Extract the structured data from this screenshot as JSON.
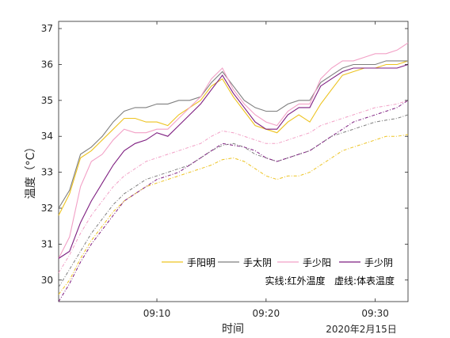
{
  "chart_data": {
    "type": "line",
    "xlabel": "时间",
    "ylabel": "温度（°C）",
    "date_label": "2020年2月15日",
    "xlim": [
      "09:01",
      "09:33"
    ],
    "ylim": [
      29.4,
      37.2
    ],
    "x_ticks": [
      {
        "label": "09:10",
        "value": "09:10"
      },
      {
        "label": "09:20",
        "value": "09:20"
      },
      {
        "label": "09:30",
        "value": "09:30"
      }
    ],
    "y_ticks": [
      30,
      31,
      32,
      33,
      34,
      35,
      36,
      37
    ],
    "grid": false,
    "legend_position": "bottom-right",
    "legend_note": "实线:红外温度   虚线:体表温度",
    "colors": {
      "手阳明": "#EDC320",
      "手太阴": "#7F7F7F",
      "手少阳": "#F2A0C6",
      "手少阴": "#7E1E80"
    },
    "series": [
      {
        "name": "手阳明",
        "style": "solid",
        "color": "#EDC320",
        "x": [
          "09:01",
          "09:02",
          "09:03",
          "09:04",
          "09:05",
          "09:06",
          "09:07",
          "09:08",
          "09:09",
          "09:10",
          "09:11",
          "09:12",
          "09:13",
          "09:14",
          "09:15",
          "09:16",
          "09:17",
          "09:18",
          "09:19",
          "09:20",
          "09:21",
          "09:22",
          "09:23",
          "09:24",
          "09:25",
          "09:26",
          "09:27",
          "09:28",
          "09:29",
          "09:30",
          "09:31",
          "09:32",
          "09:33"
        ],
        "y": [
          31.8,
          32.4,
          33.4,
          33.6,
          33.9,
          34.2,
          34.5,
          34.5,
          34.4,
          34.4,
          34.3,
          34.6,
          34.8,
          35.0,
          35.4,
          35.6,
          35.1,
          34.7,
          34.3,
          34.2,
          34.1,
          34.4,
          34.6,
          34.4,
          34.9,
          35.3,
          35.7,
          35.8,
          35.9,
          35.9,
          36.0,
          36.0,
          36.1
        ]
      },
      {
        "name": "手太阴",
        "style": "solid",
        "color": "#7F7F7F",
        "x": [
          "09:01",
          "09:02",
          "09:03",
          "09:04",
          "09:05",
          "09:06",
          "09:07",
          "09:08",
          "09:09",
          "09:10",
          "09:11",
          "09:12",
          "09:13",
          "09:14",
          "09:15",
          "09:16",
          "09:17",
          "09:18",
          "09:19",
          "09:20",
          "09:21",
          "09:22",
          "09:23",
          "09:24",
          "09:25",
          "09:26",
          "09:27",
          "09:28",
          "09:29",
          "09:30",
          "09:31",
          "09:32",
          "09:33"
        ],
        "y": [
          32.0,
          32.5,
          33.5,
          33.7,
          34.0,
          34.4,
          34.7,
          34.8,
          34.8,
          34.9,
          34.9,
          35.0,
          35.0,
          35.1,
          35.5,
          35.8,
          35.4,
          35.0,
          34.8,
          34.7,
          34.7,
          34.9,
          35.0,
          35.0,
          35.5,
          35.7,
          35.9,
          36.0,
          36.0,
          36.0,
          36.1,
          36.1,
          36.1
        ]
      },
      {
        "name": "手少阳",
        "style": "solid",
        "color": "#F2A0C6",
        "x": [
          "09:01",
          "09:02",
          "09:03",
          "09:04",
          "09:05",
          "09:06",
          "09:07",
          "09:08",
          "09:09",
          "09:10",
          "09:11",
          "09:12",
          "09:13",
          "09:14",
          "09:15",
          "09:16",
          "09:17",
          "09:18",
          "09:19",
          "09:20",
          "09:21",
          "09:22",
          "09:23",
          "09:24",
          "09:25",
          "09:26",
          "09:27",
          "09:28",
          "09:29",
          "09:30",
          "09:31",
          "09:32",
          "09:33"
        ],
        "y": [
          30.6,
          31.2,
          32.6,
          33.3,
          33.5,
          33.9,
          34.2,
          34.1,
          34.1,
          34.2,
          34.2,
          34.5,
          34.8,
          35.1,
          35.6,
          35.9,
          35.3,
          34.9,
          34.6,
          34.4,
          34.3,
          34.7,
          34.9,
          34.9,
          35.6,
          35.9,
          36.1,
          36.1,
          36.2,
          36.3,
          36.3,
          36.4,
          36.6
        ]
      },
      {
        "name": "手少阴",
        "style": "solid",
        "color": "#7E1E80",
        "x": [
          "09:01",
          "09:02",
          "09:03",
          "09:04",
          "09:05",
          "09:06",
          "09:07",
          "09:08",
          "09:09",
          "09:10",
          "09:11",
          "09:12",
          "09:13",
          "09:14",
          "09:15",
          "09:16",
          "09:17",
          "09:18",
          "09:19",
          "09:20",
          "09:21",
          "09:22",
          "09:23",
          "09:24",
          "09:25",
          "09:26",
          "09:27",
          "09:28",
          "09:29",
          "09:30",
          "09:31",
          "09:32",
          "09:33"
        ],
        "y": [
          30.6,
          30.8,
          31.6,
          32.2,
          32.7,
          33.2,
          33.6,
          33.8,
          33.9,
          34.1,
          34.0,
          34.3,
          34.6,
          34.9,
          35.3,
          35.7,
          35.2,
          34.8,
          34.4,
          34.2,
          34.2,
          34.6,
          34.8,
          34.8,
          35.4,
          35.6,
          35.8,
          35.9,
          35.9,
          35.9,
          35.9,
          35.9,
          36.0
        ]
      },
      {
        "name": "",
        "style": "dashed",
        "color": "#EDC320",
        "x": [
          "09:01",
          "09:02",
          "09:03",
          "09:04",
          "09:05",
          "09:06",
          "09:07",
          "09:08",
          "09:09",
          "09:10",
          "09:11",
          "09:12",
          "09:13",
          "09:14",
          "09:15",
          "09:16",
          "09:17",
          "09:18",
          "09:19",
          "09:20",
          "09:21",
          "09:22",
          "09:23",
          "09:24",
          "09:25",
          "09:26",
          "09:27",
          "09:28",
          "09:29",
          "09:30",
          "09:31",
          "09:32",
          "09:33"
        ],
        "y": [
          29.6,
          30.0,
          30.6,
          31.1,
          31.5,
          31.9,
          32.2,
          32.4,
          32.6,
          32.7,
          32.8,
          32.9,
          33.0,
          33.1,
          33.2,
          33.35,
          33.4,
          33.3,
          33.1,
          32.9,
          32.8,
          32.9,
          32.9,
          33.0,
          33.2,
          33.4,
          33.6,
          33.7,
          33.8,
          33.9,
          34.0,
          34.0,
          34.05
        ]
      },
      {
        "name": "",
        "style": "dashed",
        "color": "#7F7F7F",
        "x": [
          "09:01",
          "09:02",
          "09:03",
          "09:04",
          "09:05",
          "09:06",
          "09:07",
          "09:08",
          "09:09",
          "09:10",
          "09:11",
          "09:12",
          "09:13",
          "09:14",
          "09:15",
          "09:16",
          "09:17",
          "09:18",
          "09:19",
          "09:20",
          "09:21",
          "09:22",
          "09:23",
          "09:24",
          "09:25",
          "09:26",
          "09:27",
          "09:28",
          "09:29",
          "09:30",
          "09:31",
          "09:32",
          "09:33"
        ],
        "y": [
          29.8,
          30.3,
          30.8,
          31.3,
          31.7,
          32.1,
          32.4,
          32.6,
          32.8,
          32.9,
          33.0,
          33.1,
          33.2,
          33.4,
          33.6,
          33.75,
          33.8,
          33.7,
          33.5,
          33.4,
          33.3,
          33.4,
          33.5,
          33.6,
          33.8,
          34.0,
          34.1,
          34.2,
          34.3,
          34.4,
          34.45,
          34.5,
          34.6
        ]
      },
      {
        "name": "",
        "style": "dashed",
        "color": "#F2A0C6",
        "x": [
          "09:01",
          "09:02",
          "09:03",
          "09:04",
          "09:05",
          "09:06",
          "09:07",
          "09:08",
          "09:09",
          "09:10",
          "09:11",
          "09:12",
          "09:13",
          "09:14",
          "09:15",
          "09:16",
          "09:17",
          "09:18",
          "09:19",
          "09:20",
          "09:21",
          "09:22",
          "09:23",
          "09:24",
          "09:25",
          "09:26",
          "09:27",
          "09:28",
          "09:29",
          "09:30",
          "09:31",
          "09:32",
          "09:33"
        ],
        "y": [
          30.2,
          30.7,
          31.3,
          31.8,
          32.2,
          32.6,
          32.9,
          33.1,
          33.3,
          33.4,
          33.5,
          33.6,
          33.7,
          33.8,
          34.0,
          34.15,
          34.1,
          34.0,
          33.9,
          33.8,
          33.8,
          33.9,
          34.0,
          34.1,
          34.3,
          34.4,
          34.5,
          34.6,
          34.7,
          34.8,
          34.85,
          34.9,
          35.0
        ]
      },
      {
        "name": "",
        "style": "dashed",
        "color": "#7E1E80",
        "x": [
          "09:01",
          "09:02",
          "09:03",
          "09:04",
          "09:05",
          "09:06",
          "09:07",
          "09:08",
          "09:09",
          "09:10",
          "09:11",
          "09:12",
          "09:13",
          "09:14",
          "09:15",
          "09:16",
          "09:17",
          "09:18",
          "09:19",
          "09:20",
          "09:21",
          "09:22",
          "09:23",
          "09:24",
          "09:25",
          "09:26",
          "09:27",
          "09:28",
          "09:29",
          "09:30",
          "09:31",
          "09:32",
          "09:33"
        ],
        "y": [
          29.4,
          29.9,
          30.5,
          31.0,
          31.4,
          31.8,
          32.2,
          32.4,
          32.6,
          32.8,
          32.9,
          33.0,
          33.2,
          33.4,
          33.6,
          33.8,
          33.75,
          33.7,
          33.6,
          33.4,
          33.3,
          33.4,
          33.5,
          33.6,
          33.8,
          34.0,
          34.2,
          34.4,
          34.5,
          34.6,
          34.7,
          34.8,
          35.0
        ]
      }
    ]
  }
}
